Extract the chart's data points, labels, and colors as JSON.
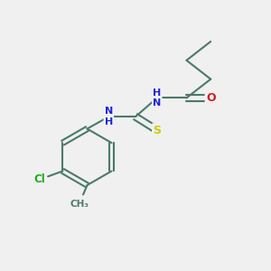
{
  "background_color": "#f0f0f0",
  "bond_color": "#4a7a6a",
  "atom_colors": {
    "N": "#2020dd",
    "O": "#cc2020",
    "S": "#cccc00",
    "Cl": "#20aa20",
    "C": "#000000",
    "H": "#808080"
  },
  "figsize": [
    3.0,
    3.0
  ],
  "dpi": 100
}
